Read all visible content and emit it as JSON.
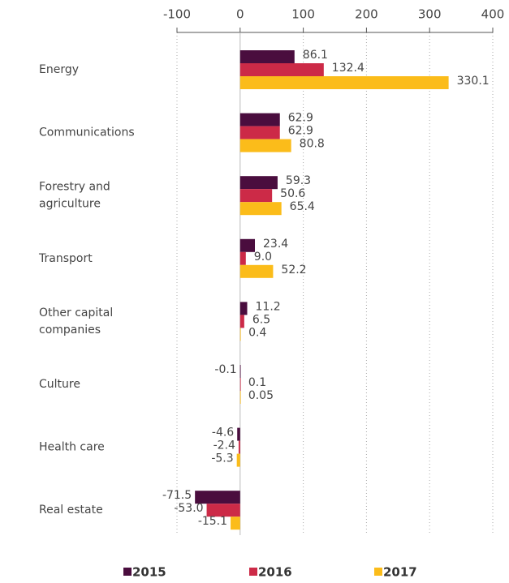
{
  "chart_data": {
    "type": "bar",
    "orientation": "horizontal",
    "categories": [
      "Energy",
      "Communications",
      "Forestry and agriculture",
      "Transport",
      "Other capital companies",
      "Culture",
      "Health care",
      "Real estate"
    ],
    "series": [
      {
        "name": "2015",
        "color": "#4a0d3e",
        "values": [
          86.1,
          62.9,
          59.3,
          23.4,
          11.2,
          -0.1,
          -4.6,
          -71.5
        ],
        "value_labels": [
          "86.1",
          "62.9",
          "59.3",
          "23.4",
          "11.2",
          "-0.1",
          "-4.6",
          "-71.5"
        ]
      },
      {
        "name": "2016",
        "color": "#cc2a47",
        "values": [
          132.4,
          62.9,
          50.6,
          9,
          6.5,
          0.1,
          -2.4,
          -53
        ],
        "value_labels": [
          "132.4",
          "62.9",
          "50.6",
          "9.0",
          "6.5",
          "0.1",
          "-2.4",
          "-53.0"
        ]
      },
      {
        "name": "2017",
        "color": "#fbbc1a",
        "values": [
          330.1,
          80.8,
          65.4,
          52.2,
          0.4,
          0.05,
          -5.3,
          -15.1
        ],
        "value_labels": [
          "330.1",
          "80.8",
          "65.4",
          "52.2",
          "0.4",
          "0.05",
          "-5.3",
          "-15.1"
        ]
      }
    ],
    "xlim": [
      -100,
      400
    ],
    "xticks": [
      -100,
      0,
      100,
      200,
      300,
      400
    ],
    "grid": true,
    "legend": "bottom"
  }
}
